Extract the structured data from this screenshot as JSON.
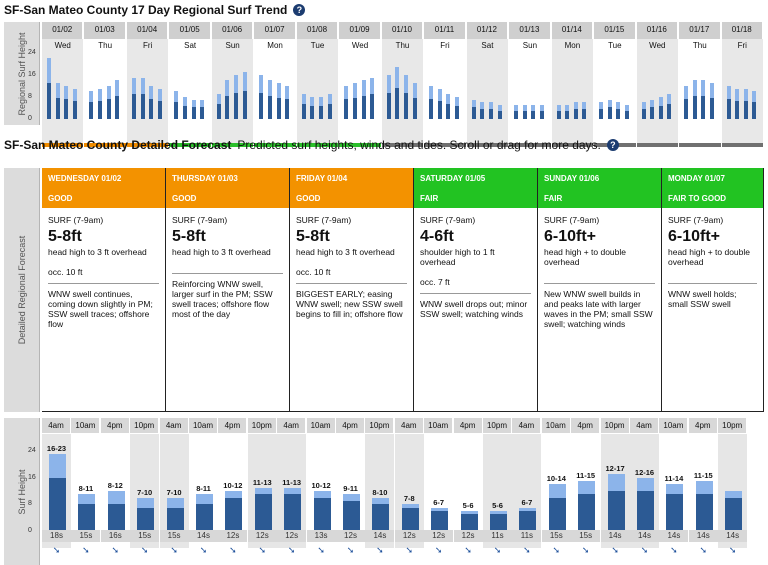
{
  "trend": {
    "title": "SF-San Mateo County 17 Day Regional Surf Trend",
    "side_label": "Regional Surf Height",
    "ticks": [
      "24",
      "16",
      "8",
      "0"
    ],
    "dates": [
      "01/02",
      "01/03",
      "01/04",
      "01/05",
      "01/06",
      "01/07",
      "01/08",
      "01/09",
      "01/10",
      "01/11",
      "01/12",
      "01/13",
      "01/14",
      "01/15",
      "01/16",
      "01/17",
      "01/18"
    ],
    "days": [
      "Wed",
      "Thu",
      "Fri",
      "Sat",
      "Sun",
      "Mon",
      "Tue",
      "Wed",
      "Thu",
      "Fri",
      "Sat",
      "Sun",
      "Mon",
      "Tue",
      "Wed",
      "Thu",
      "Fri"
    ],
    "colors": {
      "good": "#f08c00",
      "fair": "#2bbf2b",
      "poor": "#707070",
      "bar_dark": "#2c5a94",
      "bar_light": "#8cb4ea"
    }
  },
  "detailed": {
    "title": "SF-San Mateo County Detailed Forecast",
    "subtitle": "Predicted surf heights, winds and tides. Scroll or drag for more days.",
    "side_label": "Detailed Regional Forecast",
    "cards": [
      {
        "day": "WEDNESDAY 01/02",
        "rating": "GOOD",
        "color": "#f39200",
        "surf_label": "SURF (7-9am)",
        "height": "5-8ft",
        "desc": "head high to 3 ft overhead",
        "occ": "occ. 10 ft",
        "notes": "WNW swell continues, coming down slightly in PM; SSW swell traces; offshore flow"
      },
      {
        "day": "THURSDAY 01/03",
        "rating": "GOOD",
        "color": "#f39200",
        "surf_label": "SURF (7-9am)",
        "height": "5-8ft",
        "desc": "head high to 3 ft overhead",
        "occ": "",
        "notes": "Reinforcing WNW swell, larger surf in the PM; SSW swell traces; offshore flow most of the day"
      },
      {
        "day": "FRIDAY 01/04",
        "rating": "GOOD",
        "color": "#f39200",
        "surf_label": "SURF (7-9am)",
        "height": "5-8ft",
        "desc": "head high to 3 ft overhead",
        "occ": "occ. 10 ft",
        "notes": "BIGGEST EARLY; easing WNW swell; new SSW swell begins to fill in; offshore flow"
      },
      {
        "day": "SATURDAY 01/05",
        "rating": "FAIR",
        "color": "#22c322",
        "surf_label": "SURF (7-9am)",
        "height": "4-6ft",
        "desc": "shoulder high to 1 ft overhead",
        "occ": "occ. 7 ft",
        "notes": "WNW swell drops out; minor SSW swell; watching winds"
      },
      {
        "day": "SUNDAY 01/06",
        "rating": "FAIR",
        "color": "#22c322",
        "surf_label": "SURF (7-9am)",
        "height": "6-10ft+",
        "desc": "head high + to double overhead",
        "occ": "",
        "notes": "New WNW swell builds in and peaks late with larger waves in the PM; small SSW swell; watching winds"
      },
      {
        "day": "MONDAY 01/07",
        "rating": "FAIR TO GOOD",
        "color": "#22c322",
        "surf_label": "SURF (7-9am)",
        "height": "6-10ft+",
        "desc": "head high + to double overhead",
        "occ": "",
        "notes": "WNW swell holds; small SSW swell"
      }
    ]
  },
  "surf_chart": {
    "side_label": "Surf Height",
    "ticks": [
      "24",
      "16",
      "8",
      "0"
    ],
    "times": [
      "4am",
      "10am",
      "4pm",
      "10pm",
      "4am",
      "10am",
      "4pm",
      "10pm",
      "4am",
      "10am",
      "4pm",
      "10pm",
      "4am",
      "10am",
      "4pm",
      "10pm",
      "4am",
      "10am",
      "4pm",
      "10pm",
      "4am",
      "10am",
      "4pm",
      "10pm"
    ],
    "labels": [
      "16-23",
      "8-11",
      "8-12",
      "7-10",
      "7-10",
      "8-11",
      "10-12",
      "11-13",
      "11-13",
      "10-12",
      "9-11",
      "8-10",
      "7-8",
      "6-7",
      "5-6",
      "5-6",
      "6-7",
      "10-14",
      "11-15",
      "12-17",
      "12-16",
      "11-14",
      "11-15",
      ""
    ],
    "low": [
      16,
      8,
      8,
      7,
      7,
      8,
      10,
      11,
      11,
      10,
      9,
      8,
      7,
      6,
      5,
      5,
      6,
      10,
      11,
      12,
      12,
      11,
      11,
      10
    ],
    "high": [
      23,
      11,
      12,
      10,
      10,
      11,
      12,
      13,
      13,
      12,
      11,
      10,
      8,
      7,
      6,
      6,
      7,
      14,
      15,
      17,
      16,
      14,
      15,
      12
    ],
    "periods": [
      "18s",
      "15s",
      "16s",
      "15s",
      "15s",
      "14s",
      "12s",
      "12s",
      "12s",
      "13s",
      "12s",
      "14s",
      "12s",
      "12s",
      "12s",
      "11s",
      "11s",
      "15s",
      "15s",
      "14s",
      "14s",
      "14s",
      "14s",
      "14s"
    ],
    "arrow": "➘",
    "colors": {
      "dark": "#2c5a94",
      "light": "#8cb4ea",
      "shade": "#e6e6e6"
    }
  }
}
